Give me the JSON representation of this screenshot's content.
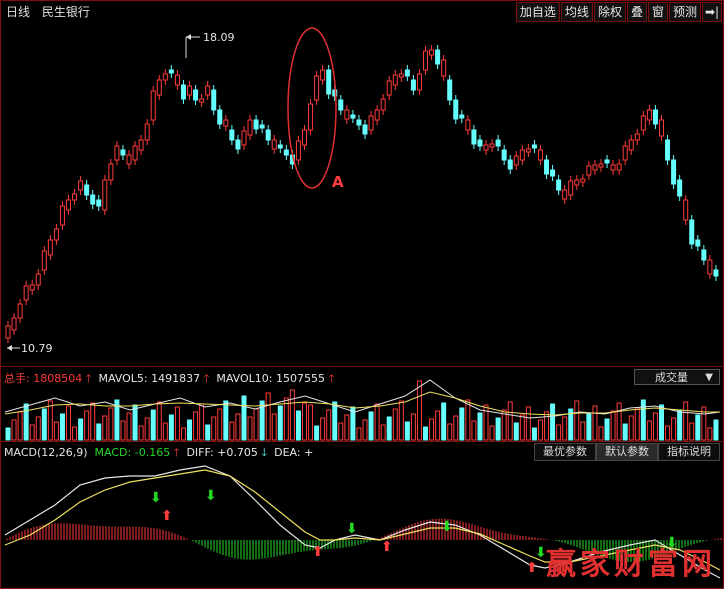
{
  "header": {
    "period": "日线",
    "stock_name": "民生银行",
    "toolbar": [
      "加自选",
      "均线",
      "除权",
      "叠",
      "窗",
      "预测"
    ],
    "toolbar_icon": "exit-icon"
  },
  "price_panel": {
    "high_label": "18.09",
    "low_label": "10.79",
    "annotation": "A"
  },
  "volume_panel": {
    "total_label": "总手:",
    "total_value": "1808504",
    "mavol5_label": "MAVOL5:",
    "mavol5_value": "1491837",
    "mavol10_label": "MAVOL10:",
    "mavol10_value": "1507555",
    "indicator_select": "成交量"
  },
  "macd_panel": {
    "name": "MACD(12,26,9)",
    "macd_label": "MACD:",
    "macd_value": "-0.165",
    "diff_label": "DIFF:",
    "diff_value": "+0.705",
    "dea_label": "DEA:",
    "dea_value": "+",
    "buttons": [
      "最优参数",
      "默认参数",
      "指标说明"
    ]
  },
  "watermark": "赢家财富网",
  "colors": {
    "up": "#ff3b3b",
    "down": "#66ffff",
    "border": "#7a1010"
  }
}
